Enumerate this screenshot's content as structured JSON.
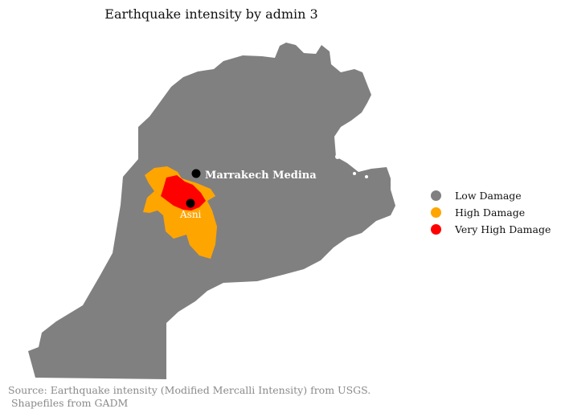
{
  "title": "Earthquake intensity by admin 3",
  "colors": {
    "low": "#808080",
    "high": "#FFA500",
    "very_high": "#FF0000",
    "city_marker": "#000000",
    "city_label": "#ffffff"
  },
  "cities": [
    {
      "name": "Marrakech Medina"
    },
    {
      "name": "Asni"
    }
  ],
  "legend": [
    {
      "label": "Low Damage",
      "color": "#808080"
    },
    {
      "label": "High Damage",
      "color": "#FFA500"
    },
    {
      "label": "Very High Damage",
      "color": "#FF0000"
    }
  ],
  "source": {
    "line1": "Source: Earthquake intensity (Modified Mercalli Intensity) from USGS.",
    "line2": " Shapefiles from GADM"
  }
}
